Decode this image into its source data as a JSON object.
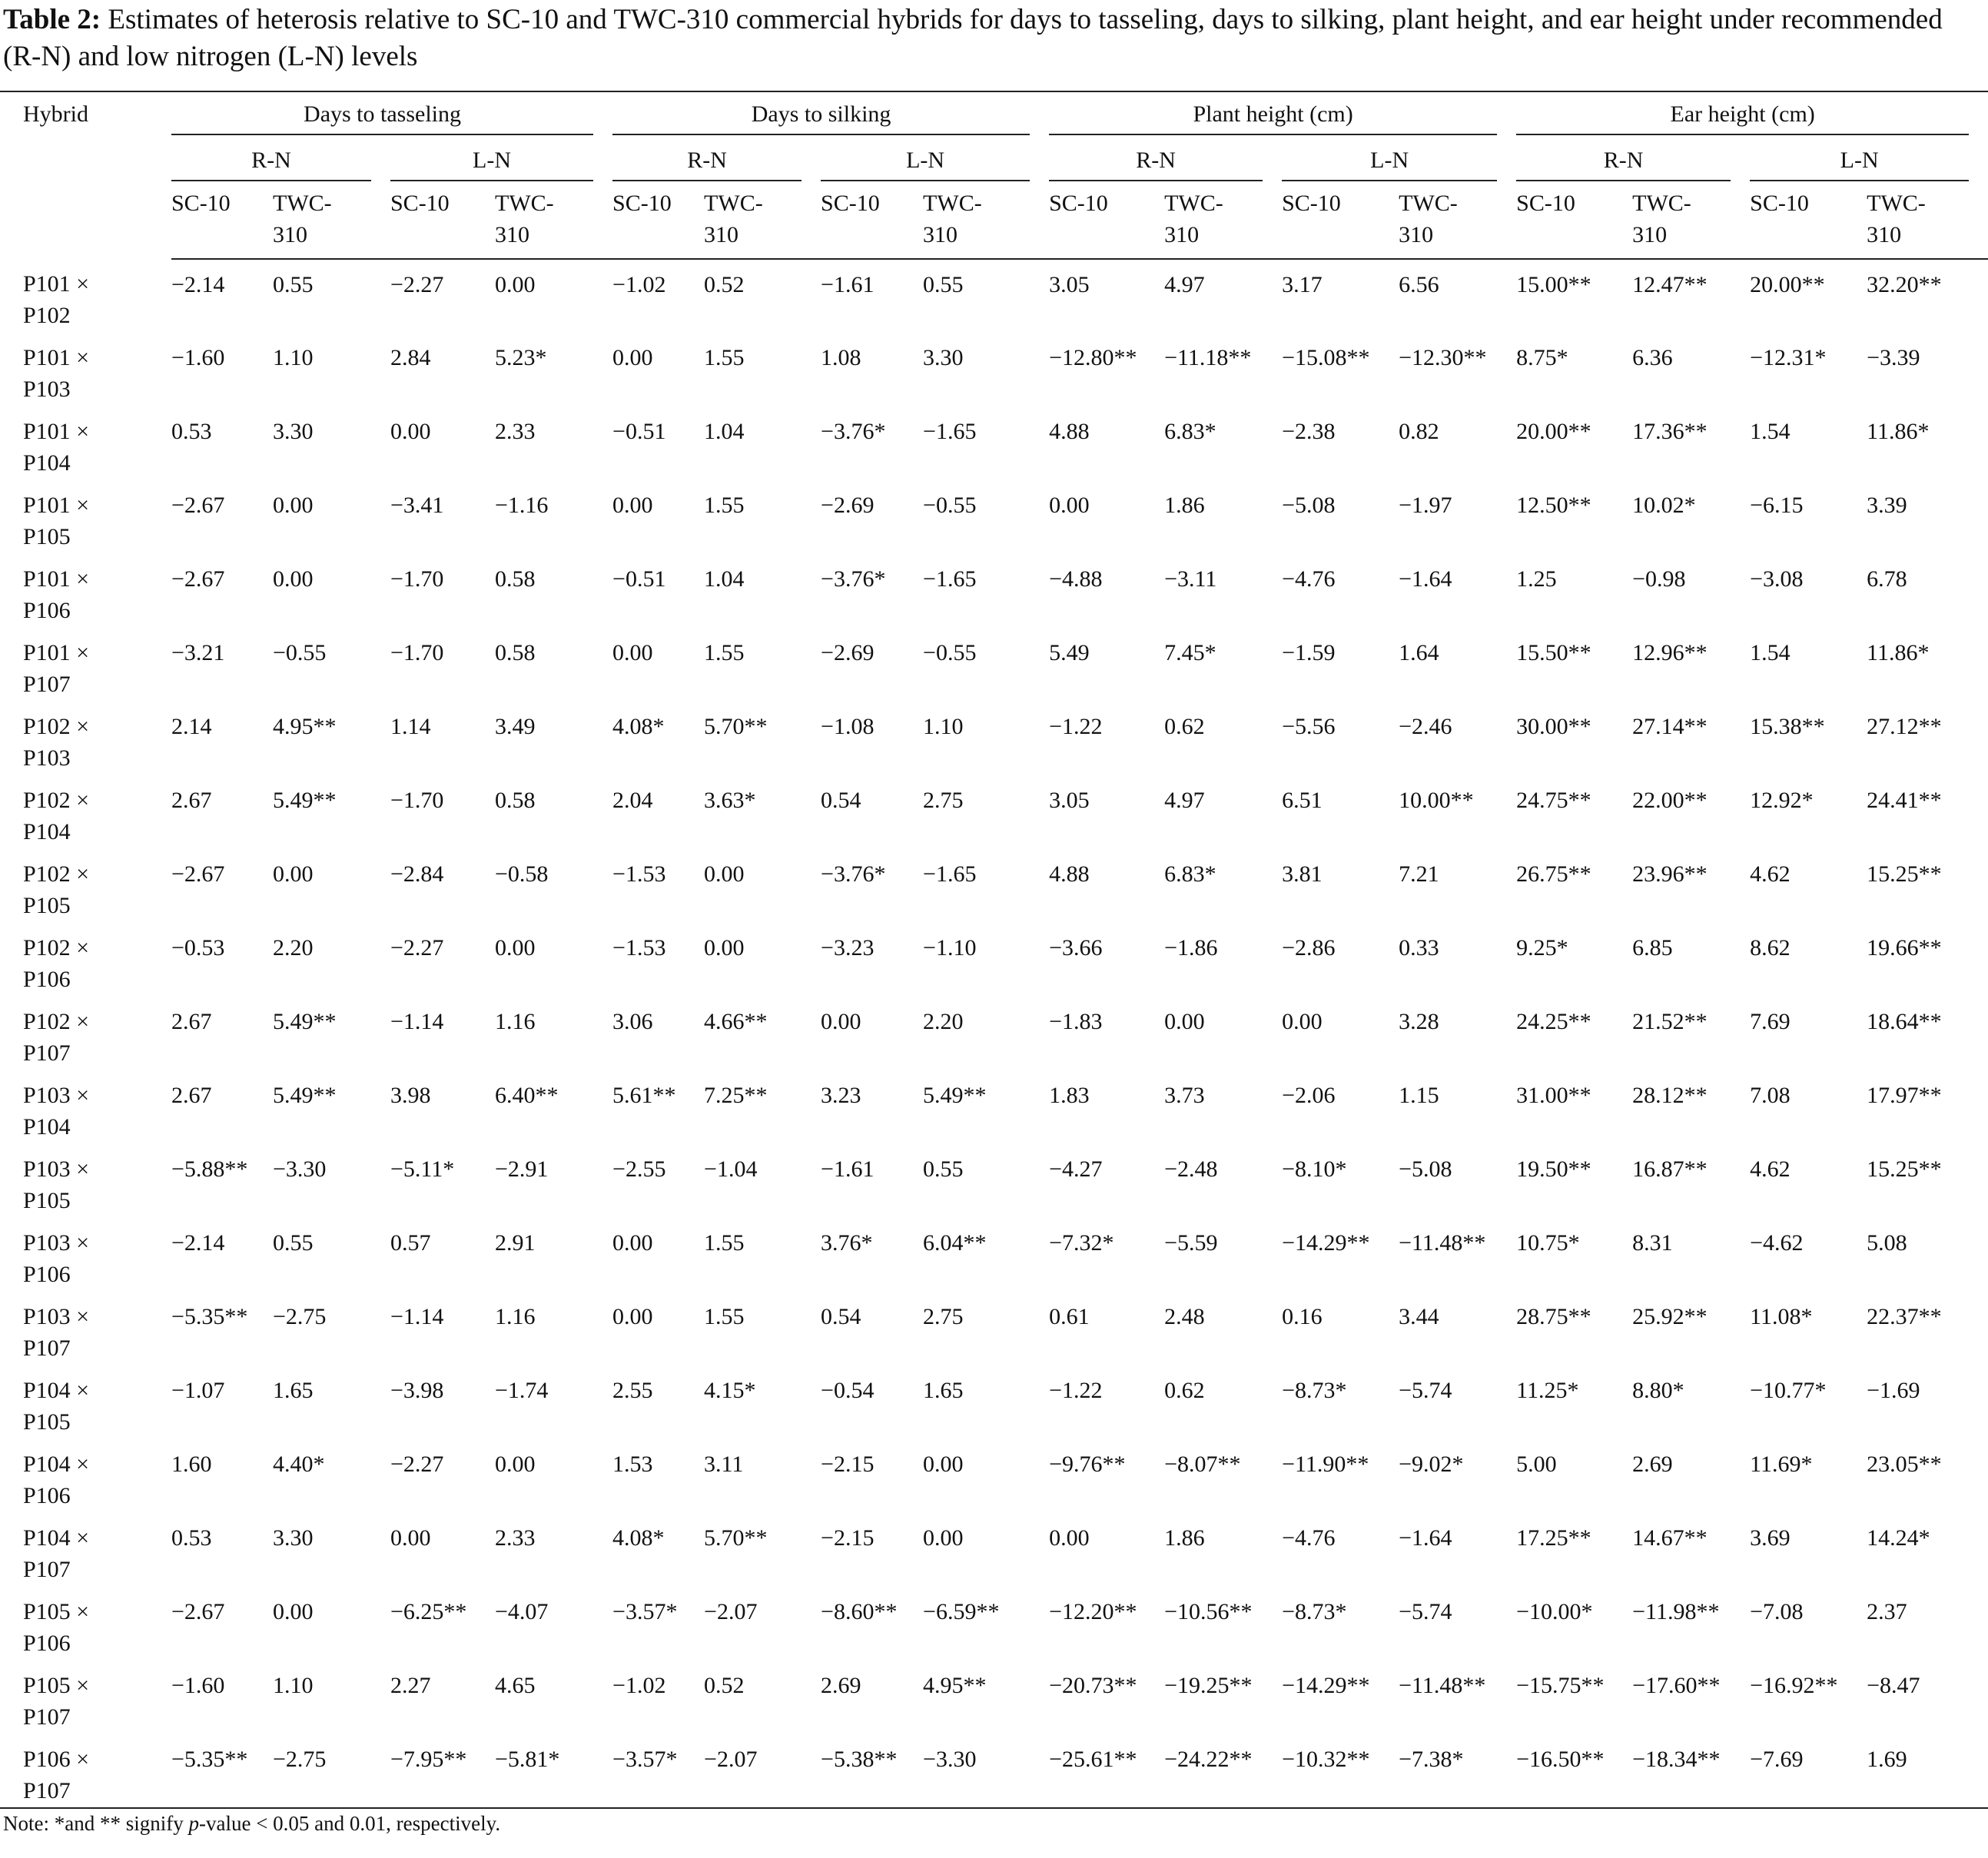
{
  "caption": {
    "label": "Table 2:",
    "text": "Estimates of heterosis relative to SC-10 and TWC-310 commercial hybrids for days to tasseling, days to silking, plant height, and ear height under recommended (R-N) and low nitrogen (L-N) levels"
  },
  "table": {
    "hybrid_header": "Hybrid",
    "groups": [
      {
        "name": "Days to tasseling",
        "subgroups": [
          {
            "name": "R-N",
            "columns": [
              "SC-10",
              "TWC-310"
            ]
          },
          {
            "name": "L-N",
            "columns": [
              "SC-10",
              "TWC-310"
            ]
          }
        ]
      },
      {
        "name": "Days to silking",
        "subgroups": [
          {
            "name": "R-N",
            "columns": [
              "SC-10",
              "TWC-310"
            ]
          },
          {
            "name": "L-N",
            "columns": [
              "SC-10",
              "TWC-310"
            ]
          }
        ]
      },
      {
        "name": "Plant height (cm)",
        "subgroups": [
          {
            "name": "R-N",
            "columns": [
              "SC-10",
              "TWC-310"
            ]
          },
          {
            "name": "L-N",
            "columns": [
              "SC-10",
              "TWC-310"
            ]
          }
        ]
      },
      {
        "name": "Ear height (cm)",
        "subgroups": [
          {
            "name": "R-N",
            "columns": [
              "SC-10",
              "TWC-310"
            ]
          },
          {
            "name": "L-N",
            "columns": [
              "SC-10",
              "TWC-310"
            ]
          }
        ]
      }
    ],
    "rows": [
      [
        "P101 × P102",
        "−2.14",
        "0.55",
        "−2.27",
        "0.00",
        "−1.02",
        "0.52",
        "−1.61",
        "0.55",
        "3.05",
        "4.97",
        "3.17",
        "6.56",
        "15.00**",
        "12.47**",
        "20.00**",
        "32.20**"
      ],
      [
        "P101 × P103",
        "−1.60",
        "1.10",
        "2.84",
        "5.23*",
        "0.00",
        "1.55",
        "1.08",
        "3.30",
        "−12.80**",
        "−11.18**",
        "−15.08**",
        "−12.30**",
        "8.75*",
        "6.36",
        "−12.31*",
        "−3.39"
      ],
      [
        "P101 × P104",
        "0.53",
        "3.30",
        "0.00",
        "2.33",
        "−0.51",
        "1.04",
        "−3.76*",
        "−1.65",
        "4.88",
        "6.83*",
        "−2.38",
        "0.82",
        "20.00**",
        "17.36**",
        "1.54",
        "11.86*"
      ],
      [
        "P101 × P105",
        "−2.67",
        "0.00",
        "−3.41",
        "−1.16",
        "0.00",
        "1.55",
        "−2.69",
        "−0.55",
        "0.00",
        "1.86",
        "−5.08",
        "−1.97",
        "12.50**",
        "10.02*",
        "−6.15",
        "3.39"
      ],
      [
        "P101 × P106",
        "−2.67",
        "0.00",
        "−1.70",
        "0.58",
        "−0.51",
        "1.04",
        "−3.76*",
        "−1.65",
        "−4.88",
        "−3.11",
        "−4.76",
        "−1.64",
        "1.25",
        "−0.98",
        "−3.08",
        "6.78"
      ],
      [
        "P101 × P107",
        "−3.21",
        "−0.55",
        "−1.70",
        "0.58",
        "0.00",
        "1.55",
        "−2.69",
        "−0.55",
        "5.49",
        "7.45*",
        "−1.59",
        "1.64",
        "15.50**",
        "12.96**",
        "1.54",
        "11.86*"
      ],
      [
        "P102 × P103",
        "2.14",
        "4.95**",
        "1.14",
        "3.49",
        "4.08*",
        "5.70**",
        "−1.08",
        "1.10",
        "−1.22",
        "0.62",
        "−5.56",
        "−2.46",
        "30.00**",
        "27.14**",
        "15.38**",
        "27.12**"
      ],
      [
        "P102 × P104",
        "2.67",
        "5.49**",
        "−1.70",
        "0.58",
        "2.04",
        "3.63*",
        "0.54",
        "2.75",
        "3.05",
        "4.97",
        "6.51",
        "10.00**",
        "24.75**",
        "22.00**",
        "12.92*",
        "24.41**"
      ],
      [
        "P102 × P105",
        "−2.67",
        "0.00",
        "−2.84",
        "−0.58",
        "−1.53",
        "0.00",
        "−3.76*",
        "−1.65",
        "4.88",
        "6.83*",
        "3.81",
        "7.21",
        "26.75**",
        "23.96**",
        "4.62",
        "15.25**"
      ],
      [
        "P102 × P106",
        "−0.53",
        "2.20",
        "−2.27",
        "0.00",
        "−1.53",
        "0.00",
        "−3.23",
        "−1.10",
        "−3.66",
        "−1.86",
        "−2.86",
        "0.33",
        "9.25*",
        "6.85",
        "8.62",
        "19.66**"
      ],
      [
        "P102 × P107",
        "2.67",
        "5.49**",
        "−1.14",
        "1.16",
        "3.06",
        "4.66**",
        "0.00",
        "2.20",
        "−1.83",
        "0.00",
        "0.00",
        "3.28",
        "24.25**",
        "21.52**",
        "7.69",
        "18.64**"
      ],
      [
        "P103 × P104",
        "2.67",
        "5.49**",
        "3.98",
        "6.40**",
        "5.61**",
        "7.25**",
        "3.23",
        "5.49**",
        "1.83",
        "3.73",
        "−2.06",
        "1.15",
        "31.00**",
        "28.12**",
        "7.08",
        "17.97**"
      ],
      [
        "P103 × P105",
        "−5.88**",
        "−3.30",
        "−5.11*",
        "−2.91",
        "−2.55",
        "−1.04",
        "−1.61",
        "0.55",
        "−4.27",
        "−2.48",
        "−8.10*",
        "−5.08",
        "19.50**",
        "16.87**",
        "4.62",
        "15.25**"
      ],
      [
        "P103 × P106",
        "−2.14",
        "0.55",
        "0.57",
        "2.91",
        "0.00",
        "1.55",
        "3.76*",
        "6.04**",
        "−7.32*",
        "−5.59",
        "−14.29**",
        "−11.48**",
        "10.75*",
        "8.31",
        "−4.62",
        "5.08"
      ],
      [
        "P103 × P107",
        "−5.35**",
        "−2.75",
        "−1.14",
        "1.16",
        "0.00",
        "1.55",
        "0.54",
        "2.75",
        "0.61",
        "2.48",
        "0.16",
        "3.44",
        "28.75**",
        "25.92**",
        "11.08*",
        "22.37**"
      ],
      [
        "P104 × P105",
        "−1.07",
        "1.65",
        "−3.98",
        "−1.74",
        "2.55",
        "4.15*",
        "−0.54",
        "1.65",
        "−1.22",
        "0.62",
        "−8.73*",
        "−5.74",
        "11.25*",
        "8.80*",
        "−10.77*",
        "−1.69"
      ],
      [
        "P104 × P106",
        "1.60",
        "4.40*",
        "−2.27",
        "0.00",
        "1.53",
        "3.11",
        "−2.15",
        "0.00",
        "−9.76**",
        "−8.07**",
        "−11.90**",
        "−9.02*",
        "5.00",
        "2.69",
        "11.69*",
        "23.05**"
      ],
      [
        "P104 × P107",
        "0.53",
        "3.30",
        "0.00",
        "2.33",
        "4.08*",
        "5.70**",
        "−2.15",
        "0.00",
        "0.00",
        "1.86",
        "−4.76",
        "−1.64",
        "17.25**",
        "14.67**",
        "3.69",
        "14.24*"
      ],
      [
        "P105 × P106",
        "−2.67",
        "0.00",
        "−6.25**",
        "−4.07",
        "−3.57*",
        "−2.07",
        "−8.60**",
        "−6.59**",
        "−12.20**",
        "−10.56**",
        "−8.73*",
        "−5.74",
        "−10.00*",
        "−11.98**",
        "−7.08",
        "2.37"
      ],
      [
        "P105 × P107",
        "−1.60",
        "1.10",
        "2.27",
        "4.65",
        "−1.02",
        "0.52",
        "2.69",
        "4.95**",
        "−20.73**",
        "−19.25**",
        "−14.29**",
        "−11.48**",
        "−15.75**",
        "−17.60**",
        "−16.92**",
        "−8.47"
      ],
      [
        "P106 × P107",
        "−5.35**",
        "−2.75",
        "−7.95**",
        "−5.81*",
        "−3.57*",
        "−2.07",
        "−5.38**",
        "−3.30",
        "−25.61**",
        "−24.22**",
        "−10.32**",
        "−7.38*",
        "−16.50**",
        "−18.34**",
        "−7.69",
        "1.69"
      ]
    ]
  },
  "note": {
    "before": "Note: *and ** signify ",
    "italic": "p",
    "after": "-value < 0.05 and 0.01, respectively."
  }
}
